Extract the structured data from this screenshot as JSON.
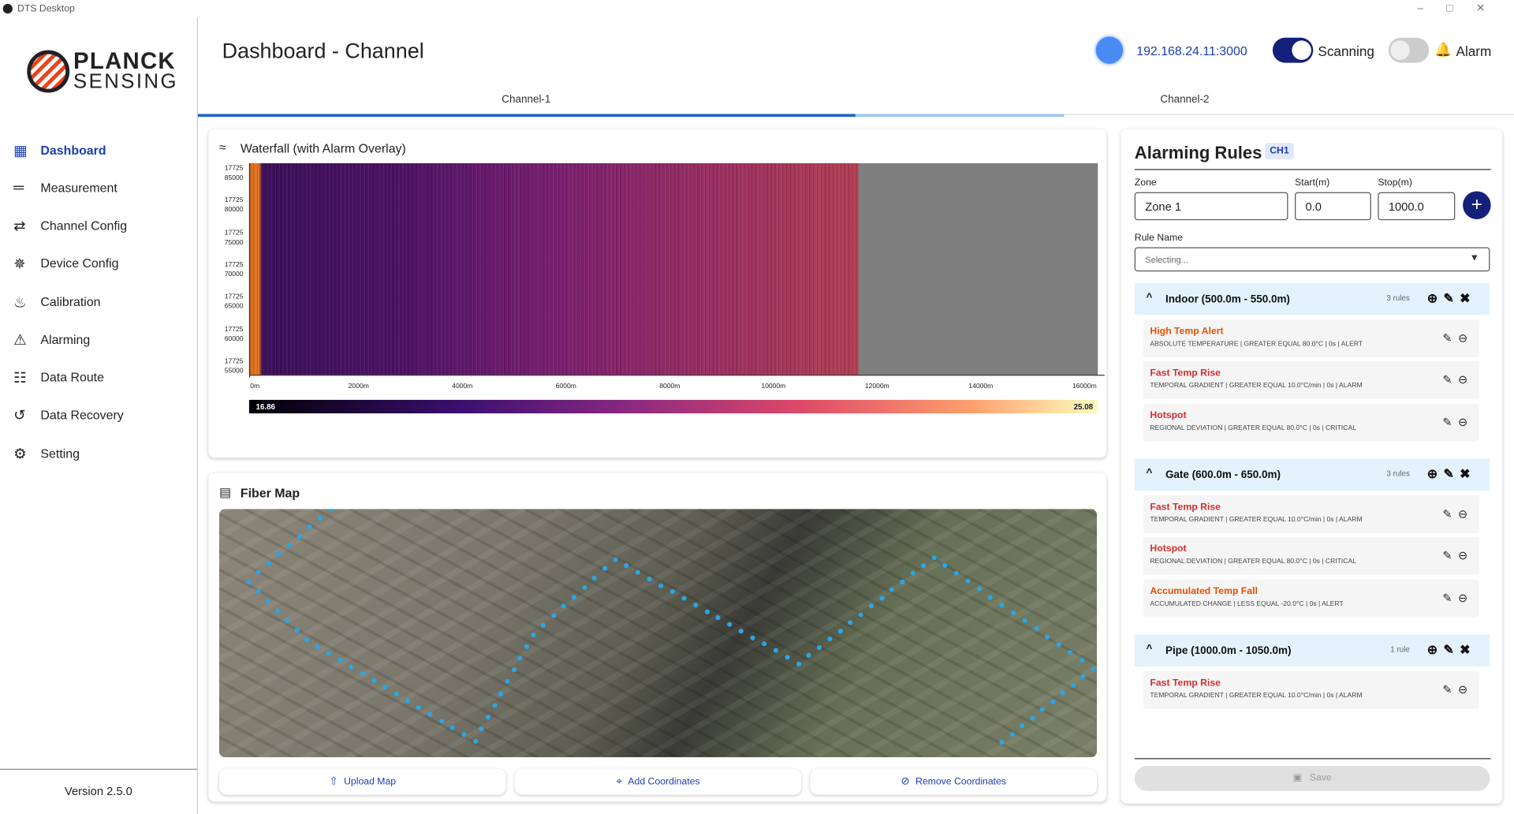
{
  "window": {
    "title": "DTS Desktop"
  },
  "sidebar": {
    "logo": [
      "PLANCK",
      "SENSING"
    ],
    "nav": [
      "Dashboard",
      "Measurement",
      "Channel Config",
      "Device Config",
      "Calibration",
      "Alarming",
      "Data Route",
      "Data Recovery",
      "Setting"
    ],
    "version": "Version 2.5.0"
  },
  "header": {
    "title": "Dashboard - Channel",
    "address": "192.168.24.11:3000",
    "scanning": "Scanning",
    "alarm": "Alarm"
  },
  "tabs": [
    "Channel-1",
    "Channel-2"
  ],
  "waterfall": {
    "title": "Waterfall (with Alarm Overlay)",
    "y_ticks": [
      [
        "17725",
        "85000"
      ],
      [
        "17725",
        "80000"
      ],
      [
        "17725",
        "75000"
      ],
      [
        "17725",
        "70000"
      ],
      [
        "17725",
        "65000"
      ],
      [
        "17725",
        "60000"
      ],
      [
        "17725",
        "55000"
      ]
    ],
    "x_ticks": [
      "0m",
      "2000m",
      "4000m",
      "6000m",
      "8000m",
      "10000m",
      "12000m",
      "14000m",
      "16000m"
    ],
    "colorbar": [
      "16.86",
      "25.08"
    ]
  },
  "fiber_map": {
    "title": "Fiber Map",
    "buttons": [
      "Upload Map",
      "Add Coordinates",
      "Remove Coordinates"
    ]
  },
  "rules": {
    "title": "Alarming Rules",
    "channel": "CH1",
    "labels": [
      "Zone",
      "Start(m)",
      "Stop(m)"
    ],
    "inputs": [
      "Zone 1",
      "0.0",
      "1000.0"
    ],
    "rule_name_label": "Rule Name",
    "rule_name_placeholder": "Selecting...",
    "groups": [
      {
        "name": "Indoor (500.0m - 550.0m)",
        "count": "3 rules",
        "rules": [
          {
            "name": "High Temp Alert",
            "detail": "ABSOLUTE TEMPERATURE | GREATER EQUAL 80.0°C | 0s | ALERT"
          },
          {
            "name": "Fast Temp Rise",
            "detail": "TEMPORAL GRADIENT | GREATER EQUAL 10.0°C/min | 0s | ALARM"
          },
          {
            "name": "Hotspot",
            "detail": "REGIONAL DEVIATION | GREATER EQUAL 80.0°C | 0s | CRITICAL"
          }
        ]
      },
      {
        "name": "Gate (600.0m - 650.0m)",
        "count": "3 rules",
        "rules": [
          {
            "name": "Fast Temp Rise",
            "detail": "TEMPORAL GRADIENT | GREATER EQUAL 10.0°C/min | 0s | ALARM"
          },
          {
            "name": "Hotspot",
            "detail": "REGIONAL DEVIATION | GREATER EQUAL 80.0°C | 0s | CRITICAL"
          },
          {
            "name": "Accumulated Temp Fall",
            "detail": "ACCUMULATED CHANGE | LESS EQUAL -20.0°C | 0s | ALERT"
          }
        ]
      },
      {
        "name": "Pipe (1000.0m - 1050.0m)",
        "count": "1 rule",
        "rules": [
          {
            "name": "Fast Temp Rise",
            "detail": "TEMPORAL GRADIENT | GREATER EQUAL 10.0°C/min | 0s | ALARM"
          }
        ]
      }
    ],
    "save": "Save"
  }
}
